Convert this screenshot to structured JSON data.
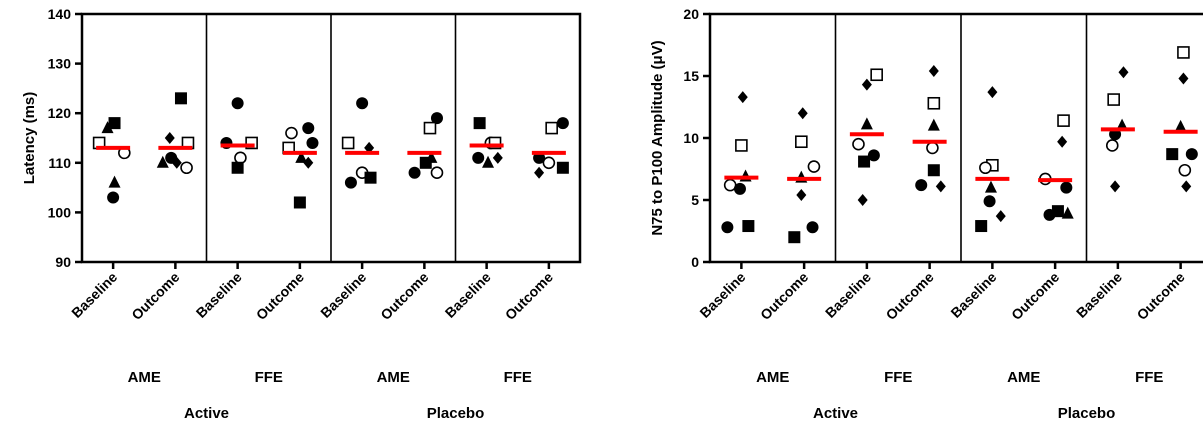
{
  "chart_data": [
    {
      "type": "scatter",
      "ylabel": "Latency (ms)",
      "ylim": [
        90,
        140
      ],
      "yticks": [
        "90",
        "100",
        "110",
        "120",
        "130",
        "140"
      ],
      "tick_labels": [
        "Baseline",
        "Outcome",
        "Baseline",
        "Outcome",
        "Baseline",
        "Outcome",
        "Baseline",
        "Outcome"
      ],
      "subgroups": [
        "AME",
        "FFE",
        "AME",
        "FFE"
      ],
      "groups": [
        "Active",
        "Placebo"
      ],
      "mean_color": "#ff0000",
      "columns": [
        {
          "mean": 113,
          "points": [
            {
              "m": "square-open",
              "dx": -1,
              "y": 114
            },
            {
              "m": "triangle",
              "dx": -0.4,
              "y": 117
            },
            {
              "m": "square",
              "dx": 0.1,
              "y": 118
            },
            {
              "m": "circle-open",
              "dx": 0.8,
              "y": 112
            },
            {
              "m": "triangle",
              "dx": 0.1,
              "y": 106
            },
            {
              "m": "circle",
              "dx": 0,
              "y": 103
            }
          ]
        },
        {
          "mean": 113,
          "points": [
            {
              "m": "square",
              "dx": 0.4,
              "y": 123
            },
            {
              "m": "diamond",
              "dx": -0.4,
              "y": 115
            },
            {
              "m": "square-open",
              "dx": 0.9,
              "y": 114
            },
            {
              "m": "circle",
              "dx": -0.3,
              "y": 111
            },
            {
              "m": "triangle",
              "dx": -0.9,
              "y": 110
            },
            {
              "m": "circle-open",
              "dx": 0.8,
              "y": 109
            },
            {
              "m": "diamond",
              "dx": 0.1,
              "y": 110
            }
          ]
        },
        {
          "mean": 113.5,
          "points": [
            {
              "m": "circle",
              "dx": 0,
              "y": 122
            },
            {
              "m": "circle",
              "dx": -0.8,
              "y": 114
            },
            {
              "m": "square-open",
              "dx": 1,
              "y": 114
            },
            {
              "m": "circle-open",
              "dx": 0.2,
              "y": 111
            },
            {
              "m": "square",
              "dx": 0,
              "y": 109
            }
          ]
        },
        {
          "mean": 112,
          "points": [
            {
              "m": "circle",
              "dx": 0.6,
              "y": 117
            },
            {
              "m": "circle-open",
              "dx": -0.6,
              "y": 116
            },
            {
              "m": "square-open",
              "dx": -0.8,
              "y": 113
            },
            {
              "m": "circle",
              "dx": 0.9,
              "y": 114
            },
            {
              "m": "triangle",
              "dx": 0.1,
              "y": 111
            },
            {
              "m": "diamond",
              "dx": 0.6,
              "y": 110
            },
            {
              "m": "square",
              "dx": 0,
              "y": 102
            }
          ]
        },
        {
          "mean": 112,
          "points": [
            {
              "m": "circle",
              "dx": 0,
              "y": 122
            },
            {
              "m": "square-open",
              "dx": -1,
              "y": 114
            },
            {
              "m": "diamond",
              "dx": 0.5,
              "y": 113
            },
            {
              "m": "circle-open",
              "dx": 0,
              "y": 108
            },
            {
              "m": "circle",
              "dx": -0.8,
              "y": 106
            },
            {
              "m": "square",
              "dx": 0.6,
              "y": 107
            }
          ]
        },
        {
          "mean": 112,
          "points": [
            {
              "m": "circle",
              "dx": 0.9,
              "y": 119
            },
            {
              "m": "square-open",
              "dx": 0.4,
              "y": 117
            },
            {
              "m": "square",
              "dx": 0.1,
              "y": 110
            },
            {
              "m": "triangle",
              "dx": 0.5,
              "y": 111
            },
            {
              "m": "circle",
              "dx": -0.7,
              "y": 108
            },
            {
              "m": "circle-open",
              "dx": 0.9,
              "y": 108
            }
          ]
        },
        {
          "mean": 113.5,
          "points": [
            {
              "m": "square",
              "dx": -0.5,
              "y": 118
            },
            {
              "m": "circle-open",
              "dx": 0.3,
              "y": 114
            },
            {
              "m": "square-open",
              "dx": 0.6,
              "y": 114
            },
            {
              "m": "circle",
              "dx": -0.6,
              "y": 111
            },
            {
              "m": "diamond",
              "dx": 0.8,
              "y": 111
            },
            {
              "m": "triangle",
              "dx": 0.1,
              "y": 110
            }
          ]
        },
        {
          "mean": 112,
          "points": [
            {
              "m": "square-open",
              "dx": 0.2,
              "y": 117
            },
            {
              "m": "circle",
              "dx": 1,
              "y": 118
            },
            {
              "m": "circle-open",
              "dx": 0,
              "y": 110
            },
            {
              "m": "circle",
              "dx": -0.7,
              "y": 111
            },
            {
              "m": "diamond",
              "dx": -0.7,
              "y": 108
            },
            {
              "m": "square",
              "dx": 1,
              "y": 109
            }
          ]
        }
      ]
    },
    {
      "type": "scatter",
      "ylabel": "N75 to P100 Amplitude (μV)",
      "ylim": [
        0,
        20
      ],
      "yticks": [
        "0",
        "5",
        "10",
        "15",
        "20"
      ],
      "tick_labels": [
        "Baseline",
        "Outcome",
        "Baseline",
        "Outcome",
        "Baseline",
        "Outcome",
        "Baseline",
        "Outcome"
      ],
      "subgroups": [
        "AME",
        "FFE",
        "AME",
        "FFE"
      ],
      "groups": [
        "Active",
        "Placebo"
      ],
      "mean_color": "#ff0000",
      "columns": [
        {
          "mean": 6.8,
          "points": [
            {
              "m": "diamond",
              "dx": 0.1,
              "y": 13.3
            },
            {
              "m": "square-open",
              "dx": 0,
              "y": 9.4
            },
            {
              "m": "circle-open",
              "dx": -0.8,
              "y": 6.2
            },
            {
              "m": "triangle",
              "dx": 0.3,
              "y": 6.9
            },
            {
              "m": "circle",
              "dx": -0.1,
              "y": 5.9
            },
            {
              "m": "circle",
              "dx": -1,
              "y": 2.8
            },
            {
              "m": "square",
              "dx": 0.5,
              "y": 2.9
            }
          ]
        },
        {
          "mean": 6.7,
          "points": [
            {
              "m": "diamond",
              "dx": -0.1,
              "y": 12
            },
            {
              "m": "square-open",
              "dx": -0.2,
              "y": 9.7
            },
            {
              "m": "circle-open",
              "dx": 0.7,
              "y": 7.7
            },
            {
              "m": "triangle",
              "dx": -0.2,
              "y": 6.8
            },
            {
              "m": "diamond",
              "dx": -0.2,
              "y": 5.4
            },
            {
              "m": "square",
              "dx": -0.7,
              "y": 2
            },
            {
              "m": "circle",
              "dx": 0.6,
              "y": 2.8
            }
          ]
        },
        {
          "mean": 10.3,
          "points": [
            {
              "m": "square-open",
              "dx": 0.7,
              "y": 15.1
            },
            {
              "m": "diamond",
              "dx": 0,
              "y": 14.3
            },
            {
              "m": "triangle",
              "dx": 0,
              "y": 11.1
            },
            {
              "m": "circle-open",
              "dx": -0.6,
              "y": 9.5
            },
            {
              "m": "circle",
              "dx": 0.5,
              "y": 8.6
            },
            {
              "m": "square",
              "dx": -0.2,
              "y": 8.1
            },
            {
              "m": "diamond",
              "dx": -0.3,
              "y": 5
            }
          ]
        },
        {
          "mean": 9.7,
          "points": [
            {
              "m": "diamond",
              "dx": 0.3,
              "y": 15.4
            },
            {
              "m": "square-open",
              "dx": 0.3,
              "y": 12.8
            },
            {
              "m": "triangle",
              "dx": 0.3,
              "y": 11
            },
            {
              "m": "circle-open",
              "dx": 0.2,
              "y": 9.2
            },
            {
              "m": "square",
              "dx": 0.3,
              "y": 7.4
            },
            {
              "m": "circle",
              "dx": -0.6,
              "y": 6.2
            },
            {
              "m": "diamond",
              "dx": 0.8,
              "y": 6.1
            }
          ]
        },
        {
          "mean": 6.7,
          "points": [
            {
              "m": "diamond",
              "dx": 0,
              "y": 13.7
            },
            {
              "m": "square-open",
              "dx": 0,
              "y": 7.8
            },
            {
              "m": "circle-open",
              "dx": -0.5,
              "y": 7.6
            },
            {
              "m": "triangle",
              "dx": -0.1,
              "y": 6
            },
            {
              "m": "circle",
              "dx": -0.2,
              "y": 4.9
            },
            {
              "m": "diamond",
              "dx": 0.6,
              "y": 3.7
            },
            {
              "m": "square",
              "dx": -0.8,
              "y": 2.9
            }
          ]
        },
        {
          "mean": 6.6,
          "points": [
            {
              "m": "square-open",
              "dx": 0.6,
              "y": 11.4
            },
            {
              "m": "diamond",
              "dx": 0.5,
              "y": 9.7
            },
            {
              "m": "circle-open",
              "dx": -0.7,
              "y": 6.7
            },
            {
              "m": "circle",
              "dx": 0.8,
              "y": 6
            },
            {
              "m": "square",
              "dx": 0.2,
              "y": 4.1
            },
            {
              "m": "circle",
              "dx": -0.4,
              "y": 3.8
            },
            {
              "m": "triangle",
              "dx": 0.9,
              "y": 3.9
            }
          ]
        },
        {
          "mean": 10.7,
          "points": [
            {
              "m": "diamond",
              "dx": 0.4,
              "y": 15.3
            },
            {
              "m": "square-open",
              "dx": -0.3,
              "y": 13.1
            },
            {
              "m": "triangle",
              "dx": 0.3,
              "y": 11
            },
            {
              "m": "circle",
              "dx": -0.2,
              "y": 10.3
            },
            {
              "m": "circle-open",
              "dx": -0.4,
              "y": 9.4
            },
            {
              "m": "diamond",
              "dx": -0.2,
              "y": 6.1
            }
          ]
        },
        {
          "mean": 10.5,
          "points": [
            {
              "m": "square-open",
              "dx": 0.2,
              "y": 16.9
            },
            {
              "m": "diamond",
              "dx": 0.2,
              "y": 14.8
            },
            {
              "m": "triangle",
              "dx": 0,
              "y": 10.9
            },
            {
              "m": "square",
              "dx": -0.6,
              "y": 8.7
            },
            {
              "m": "circle",
              "dx": 0.8,
              "y": 8.7
            },
            {
              "m": "circle-open",
              "dx": 0.3,
              "y": 7.4
            },
            {
              "m": "diamond",
              "dx": 0.4,
              "y": 6.1
            }
          ]
        }
      ]
    }
  ]
}
